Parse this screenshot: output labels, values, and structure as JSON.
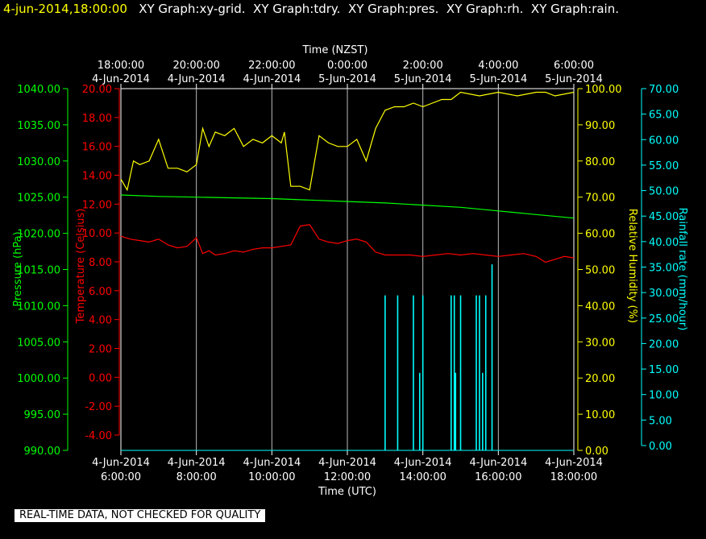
{
  "header": {
    "timestamp": "4-jun-2014,18:00:00",
    "titles": [
      "XY Graph:xy-grid.",
      "XY Graph:tdry.",
      "XY Graph:pres.",
      "XY Graph:rh.",
      "XY Graph:rain."
    ]
  },
  "footer": "REAL-TIME DATA, NOT CHECKED FOR QUALITY",
  "colors": {
    "pressure": "#00ff00",
    "temperature": "#ff0000",
    "humidity": "#ffff00",
    "rain": "#00ffff",
    "grid": "#ffffff",
    "text": "#ffffff"
  },
  "chart_data": {
    "type": "line",
    "top_axis": {
      "label": "Time (NZST)",
      "ticks": [
        {
          "time": "18:00:00",
          "date": "4-Jun-2014"
        },
        {
          "time": "20:00:00",
          "date": "4-Jun-2014"
        },
        {
          "time": "22:00:00",
          "date": "4-Jun-2014"
        },
        {
          "time": "0:00:00",
          "date": "5-Jun-2014"
        },
        {
          "time": "2:00:00",
          "date": "5-Jun-2014"
        },
        {
          "time": "4:00:00",
          "date": "5-Jun-2014"
        },
        {
          "time": "6:00:00",
          "date": "5-Jun-2014"
        }
      ]
    },
    "bottom_axis": {
      "label": "Time (UTC)",
      "ticks": [
        {
          "date": "4-Jun-2014",
          "time": "6:00:00"
        },
        {
          "date": "4-Jun-2014",
          "time": "8:00:00"
        },
        {
          "date": "4-Jun-2014",
          "time": "10:00:00"
        },
        {
          "date": "4-Jun-2014",
          "time": "12:00:00"
        },
        {
          "date": "4-Jun-2014",
          "time": "14:00:00"
        },
        {
          "date": "4-Jun-2014",
          "time": "16:00:00"
        },
        {
          "date": "4-Jun-2014",
          "time": "18:00:00"
        }
      ],
      "range": [
        "2014-06-04 06:00",
        "2014-06-04 18:00"
      ],
      "grid": true
    },
    "axes": {
      "pressure": {
        "label": "Pressure (hPa)",
        "min": 990,
        "max": 1040,
        "ticks": [
          "1040.00",
          "1035.00",
          "1030.00",
          "1025.00",
          "1020.00",
          "1015.00",
          "1010.00",
          "1005.00",
          "1000.00",
          "995.00",
          "990.00"
        ]
      },
      "temperature": {
        "label": "Temperature (Celsius)",
        "min": -5,
        "max": 20,
        "ticks": [
          "20.00",
          "18.00",
          "16.00",
          "14.00",
          "12.00",
          "10.00",
          "8.00",
          "6.00",
          "4.00",
          "2.00",
          "0.00",
          "-2.00",
          "-4.00"
        ]
      },
      "humidity": {
        "label": "Relative Humidity (%)",
        "min": 0,
        "max": 100,
        "ticks": [
          "100.00",
          "90.00",
          "80.00",
          "70.00",
          "60.00",
          "50.00",
          "40.00",
          "30.00",
          "20.00",
          "10.00",
          "0.00"
        ]
      },
      "rain": {
        "label": "Rainfall rate (mm/hour)",
        "min": 0,
        "max": 70,
        "ticks": [
          "70.00",
          "65.00",
          "60.00",
          "55.00",
          "50.00",
          "45.00",
          "40.00",
          "35.00",
          "30.00",
          "25.00",
          "20.00",
          "15.00",
          "10.00",
          "5.00",
          "0.00"
        ]
      }
    },
    "series": [
      {
        "key": "pressure",
        "x": [
          "06:00",
          "07:00",
          "08:00",
          "09:00",
          "10:00",
          "11:00",
          "12:00",
          "13:00",
          "14:00",
          "15:00",
          "16:00",
          "17:00",
          "18:00"
        ],
        "values": [
          1025.3,
          1025.1,
          1025.0,
          1024.9,
          1024.8,
          1024.6,
          1024.4,
          1024.2,
          1023.9,
          1023.6,
          1023.1,
          1022.6,
          1022.1
        ]
      },
      {
        "key": "temperature",
        "x": [
          "06:00",
          "06:15",
          "06:30",
          "06:45",
          "07:00",
          "07:15",
          "07:30",
          "07:45",
          "08:00",
          "08:10",
          "08:20",
          "08:30",
          "08:45",
          "09:00",
          "09:15",
          "09:30",
          "09:45",
          "10:00",
          "10:15",
          "10:30",
          "10:45",
          "11:00",
          "11:15",
          "11:30",
          "11:45",
          "12:00",
          "12:15",
          "12:30",
          "12:45",
          "13:00",
          "13:20",
          "13:40",
          "14:00",
          "14:20",
          "14:40",
          "15:00",
          "15:20",
          "15:40",
          "16:00",
          "16:20",
          "16:40",
          "17:00",
          "17:15",
          "17:30",
          "17:45",
          "18:00"
        ],
        "values": [
          9.8,
          9.6,
          9.5,
          9.4,
          9.6,
          9.2,
          9.0,
          9.1,
          9.7,
          8.6,
          8.8,
          8.5,
          8.6,
          8.8,
          8.7,
          8.9,
          9.0,
          9.0,
          9.1,
          9.2,
          10.5,
          10.6,
          9.6,
          9.4,
          9.3,
          9.5,
          9.6,
          9.4,
          8.7,
          8.5,
          8.5,
          8.5,
          8.4,
          8.5,
          8.6,
          8.5,
          8.6,
          8.5,
          8.4,
          8.5,
          8.6,
          8.4,
          8.0,
          8.2,
          8.4,
          8.3
        ]
      },
      {
        "key": "humidity",
        "x": [
          "06:00",
          "06:10",
          "06:20",
          "06:30",
          "06:45",
          "07:00",
          "07:15",
          "07:30",
          "07:45",
          "08:00",
          "08:10",
          "08:20",
          "08:30",
          "08:45",
          "09:00",
          "09:15",
          "09:30",
          "09:45",
          "10:00",
          "10:15",
          "10:20",
          "10:30",
          "10:45",
          "11:00",
          "11:15",
          "11:30",
          "11:45",
          "12:00",
          "12:15",
          "12:30",
          "12:45",
          "13:00",
          "13:15",
          "13:30",
          "13:45",
          "14:00",
          "14:15",
          "14:30",
          "14:45",
          "15:00",
          "15:30",
          "16:00",
          "16:30",
          "17:00",
          "17:15",
          "17:30",
          "18:00"
        ],
        "values": [
          75,
          72,
          80,
          79,
          80,
          86,
          78,
          78,
          77,
          79,
          89,
          84,
          88,
          87,
          89,
          84,
          86,
          85,
          87,
          85,
          88,
          73,
          73,
          72,
          87,
          85,
          84,
          84,
          86,
          80,
          89,
          94,
          95,
          95,
          96,
          95,
          96,
          97,
          97,
          99,
          98,
          99,
          98,
          99,
          99,
          98,
          99
        ]
      },
      {
        "key": "rain",
        "type": "bar",
        "x": [
          "13:00",
          "13:20",
          "13:45",
          "13:55",
          "14:00",
          "14:45",
          "14:50",
          "14:52",
          "15:00",
          "15:25",
          "15:30",
          "15:35",
          "15:40",
          "15:50"
        ],
        "values": [
          30,
          30,
          30,
          15,
          30,
          30,
          30,
          15,
          30,
          30,
          30,
          15,
          30,
          36
        ]
      }
    ]
  }
}
